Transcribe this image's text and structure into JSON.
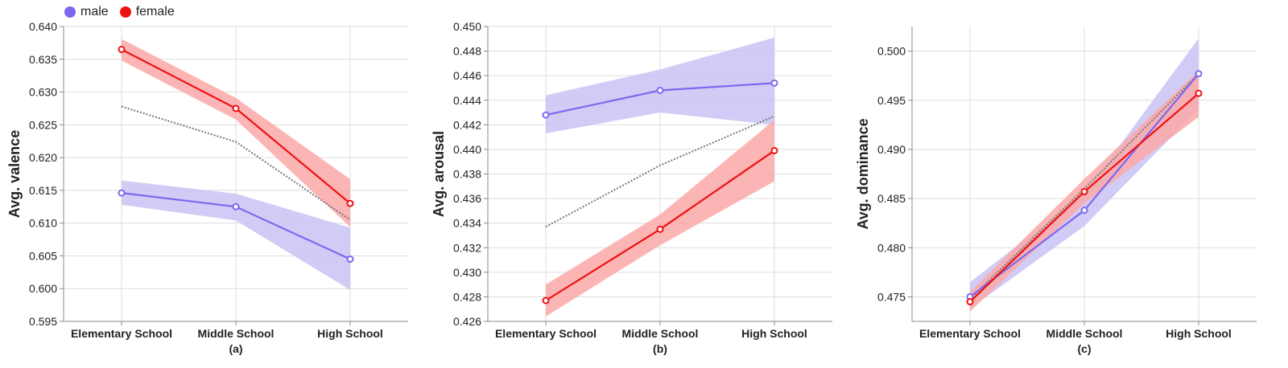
{
  "legend": [
    {
      "name": "male",
      "color": "#7b68ee"
    },
    {
      "name": "female",
      "color": "#ee1111"
    }
  ],
  "colors": {
    "male_band": "#c9c3f5",
    "female_band": "#fba8a8",
    "mean_line": "#777777",
    "grid": "#dddddd",
    "axis": "#888888"
  },
  "chart_data": [
    {
      "type": "line",
      "title": "",
      "xlabel": "(a)",
      "ylabel": "Avg. valence",
      "categories": [
        "Elementary School",
        "Middle School",
        "High School"
      ],
      "ylim": [
        0.595,
        0.64
      ],
      "yticks": [
        "0.595",
        "0.600",
        "0.605",
        "0.610",
        "0.615",
        "0.620",
        "0.625",
        "0.630",
        "0.635",
        "0.640"
      ],
      "grid": true,
      "series": [
        {
          "name": "male",
          "values": [
            0.6146,
            0.6125,
            0.6045
          ],
          "lower": [
            0.6128,
            0.6104,
            0.5998
          ],
          "upper": [
            0.6165,
            0.6145,
            0.6093
          ]
        },
        {
          "name": "female",
          "values": [
            0.6365,
            0.6275,
            0.613
          ],
          "lower": [
            0.6348,
            0.6258,
            0.6094
          ],
          "upper": [
            0.6381,
            0.6291,
            0.6167
          ]
        },
        {
          "name": "",
          "dashed": true,
          "values": [
            0.6278,
            0.6224,
            0.6105
          ]
        }
      ]
    },
    {
      "type": "line",
      "title": "",
      "xlabel": "(b)",
      "ylabel": "Avg. arousal",
      "categories": [
        "Elementary School",
        "Middle School",
        "High School"
      ],
      "ylim": [
        0.426,
        0.45
      ],
      "yticks": [
        "0.426",
        "0.428",
        "0.430",
        "0.432",
        "0.434",
        "0.436",
        "0.438",
        "0.440",
        "0.442",
        "0.444",
        "0.446",
        "0.448",
        "0.450"
      ],
      "grid": true,
      "series": [
        {
          "name": "male",
          "values": [
            0.4428,
            0.4448,
            0.4454
          ],
          "lower": [
            0.4413,
            0.443,
            0.442
          ],
          "upper": [
            0.4444,
            0.4465,
            0.4491
          ]
        },
        {
          "name": "female",
          "values": [
            0.4277,
            0.4335,
            0.4399
          ],
          "lower": [
            0.4264,
            0.4322,
            0.4374
          ],
          "upper": [
            0.429,
            0.4347,
            0.4424
          ]
        },
        {
          "name": "",
          "dashed": true,
          "values": [
            0.4337,
            0.4387,
            0.4427
          ]
        }
      ]
    },
    {
      "type": "line",
      "title": "",
      "xlabel": "(c)",
      "ylabel": "Avg. dominance",
      "categories": [
        "Elementary School",
        "Middle School",
        "High School"
      ],
      "ylim": [
        0.4725,
        0.5025
      ],
      "yticks": [
        "0.475",
        "0.480",
        "0.485",
        "0.490",
        "0.495",
        "0.500"
      ],
      "grid": true,
      "series": [
        {
          "name": "male",
          "values": [
            0.475,
            0.4838,
            0.4977
          ],
          "lower": [
            0.4738,
            0.4822,
            0.4941
          ],
          "upper": [
            0.4765,
            0.4855,
            0.5013
          ]
        },
        {
          "name": "female",
          "values": [
            0.4745,
            0.4857,
            0.4957
          ],
          "lower": [
            0.4735,
            0.4845,
            0.4933
          ],
          "upper": [
            0.4755,
            0.487,
            0.498
          ]
        },
        {
          "name": "",
          "dashed": true,
          "values": [
            0.4748,
            0.486,
            0.4977
          ]
        }
      ]
    }
  ]
}
